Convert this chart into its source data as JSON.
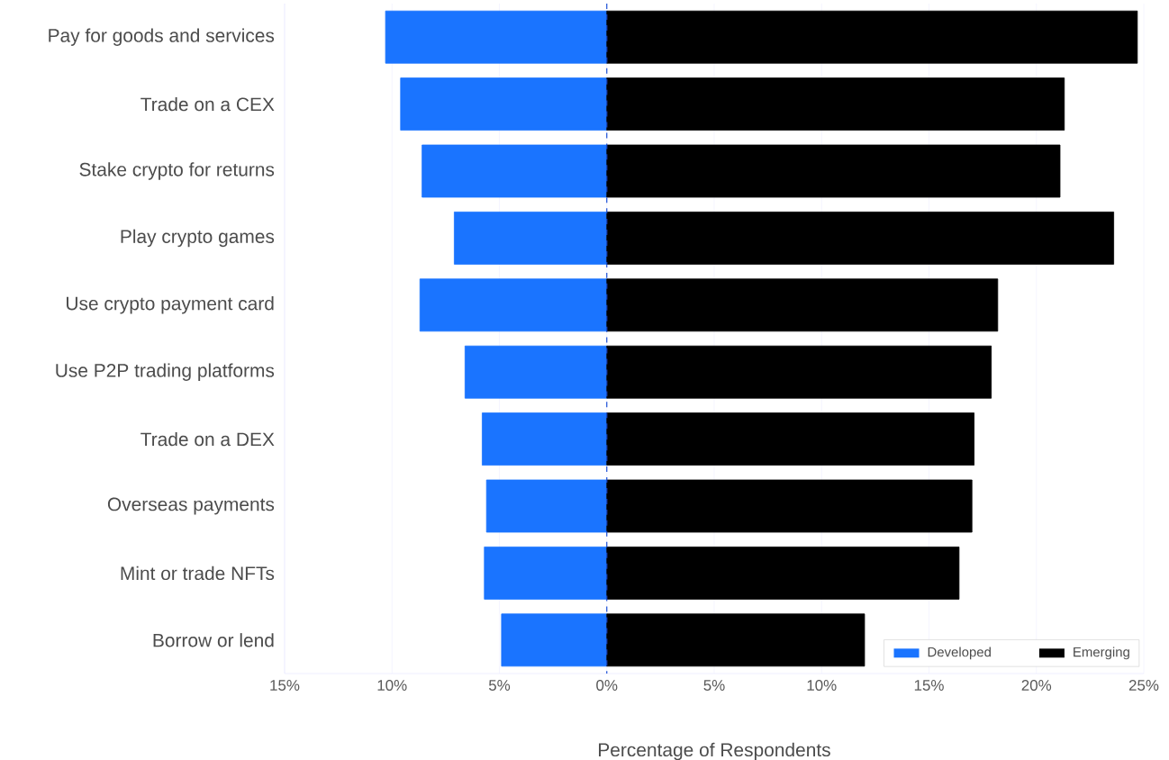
{
  "chart_data": {
    "type": "bar",
    "orientation": "horizontal",
    "stacked": true,
    "xlabel": "Percentage of Respondents",
    "categories": [
      "Pay for goods and services",
      "Trade on a CEX",
      "Stake crypto for returns",
      "Play crypto games",
      "Use crypto payment card",
      "Use P2P trading platforms",
      "Trade on a DEX",
      "Overseas payments",
      "Mint or trade NFTs",
      "Borrow or lend"
    ],
    "series": [
      {
        "name": "Developed",
        "color": "#1a74ff",
        "values": [
          -10.3,
          -9.6,
          -8.6,
          -7.1,
          -8.7,
          -6.6,
          -5.8,
          -5.6,
          -5.7,
          -4.9
        ]
      },
      {
        "name": "Emerging",
        "color": "#000000",
        "values": [
          24.7,
          21.3,
          21.1,
          23.6,
          18.2,
          17.9,
          17.1,
          17.0,
          16.4,
          12.0
        ]
      }
    ],
    "xlim": [
      -15,
      25
    ],
    "xticks": [
      {
        "value": -15,
        "label": "15%"
      },
      {
        "value": -10,
        "label": "10%"
      },
      {
        "value": -5,
        "label": "5%"
      },
      {
        "value": 0,
        "label": "0%"
      },
      {
        "value": 5,
        "label": "5%"
      },
      {
        "value": 10,
        "label": "10%"
      },
      {
        "value": 15,
        "label": "15%"
      },
      {
        "value": 20,
        "label": "20%"
      },
      {
        "value": 25,
        "label": "25%"
      }
    ],
    "ref_lines": [
      {
        "axis": "x",
        "value": 0,
        "color": "#1a4fd6",
        "line_style": "dashed"
      }
    ],
    "grid": "x",
    "legend": "bottom right"
  }
}
